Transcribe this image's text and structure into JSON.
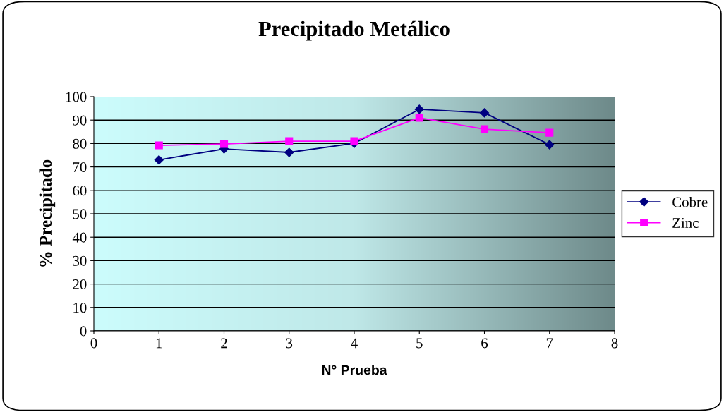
{
  "chart_data": {
    "type": "line",
    "title": "Precipitado Metálico",
    "xlabel": "N° Prueba",
    "ylabel": "% Precipitado",
    "x": [
      1,
      2,
      3,
      4,
      5,
      6,
      7
    ],
    "series": [
      {
        "name": "Cobre",
        "color": "#000080",
        "marker": "diamond",
        "values": [
          73,
          77.7,
          76.2,
          80.1,
          94.6,
          93.1,
          79.5
        ]
      },
      {
        "name": "Zinc",
        "color": "#ff00ff",
        "marker": "square",
        "values": [
          79.2,
          79.8,
          81,
          81,
          91,
          86.1,
          84.6
        ]
      }
    ],
    "xlim": [
      0,
      8
    ],
    "xticks": [
      0,
      1,
      2,
      3,
      4,
      5,
      6,
      7,
      8
    ],
    "ylim": [
      0,
      100
    ],
    "yticks": [
      0,
      10,
      20,
      30,
      40,
      50,
      60,
      70,
      80,
      90,
      100
    ],
    "grid": "y",
    "legend": "right",
    "line_style": "solid"
  }
}
